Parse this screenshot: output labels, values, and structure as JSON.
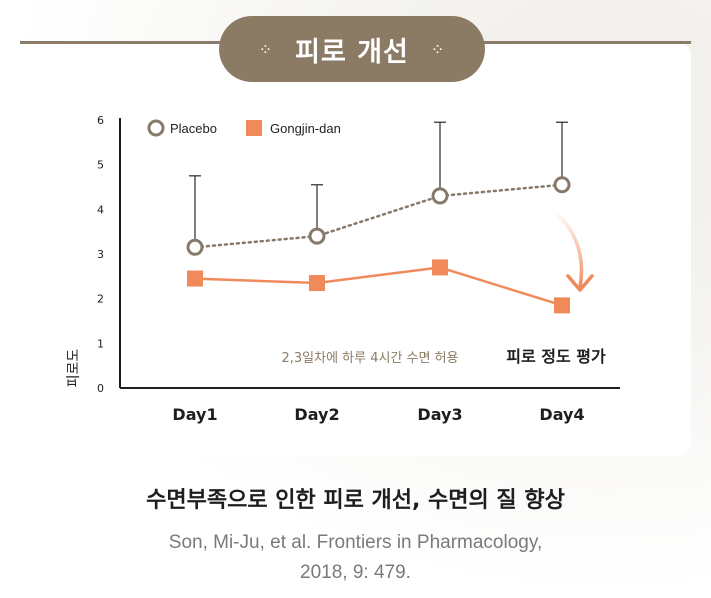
{
  "header": {
    "title": "피로 개선",
    "deco_left": "⁘",
    "deco_right": "⁘"
  },
  "chart_data": {
    "type": "line",
    "categories": [
      "Day1",
      "Day2",
      "Day3",
      "Day4"
    ],
    "ylabel": "피로도",
    "ylim": [
      0,
      6
    ],
    "yticks": [
      "0",
      "1",
      "2",
      "3",
      "4",
      "5",
      "6"
    ],
    "legend_position": "top-left",
    "series": [
      {
        "name": "Placebo",
        "values": [
          3.15,
          3.4,
          4.3,
          4.55
        ],
        "error_upper": [
          4.75,
          4.55,
          5.95,
          5.95
        ],
        "color": "#86796a",
        "marker": "hollow-circle",
        "line": "dotted"
      },
      {
        "name": "Gongjin-dan",
        "values": [
          2.45,
          2.35,
          2.7,
          1.85
        ],
        "color": "#f08a5b",
        "marker": "square",
        "line": "solid"
      }
    ],
    "annotation_note": "2,3일차에 하루 4시간 수면 허용",
    "annotation_eval": "피로 정도 평가"
  },
  "caption": {
    "title": "수면부족으로 인한 피로 개선, 수면의 질 향상",
    "citation_line1": "Son, Mi-Ju, et al. Frontiers in Pharmacology,",
    "citation_line2": "2018, 9: 479."
  }
}
